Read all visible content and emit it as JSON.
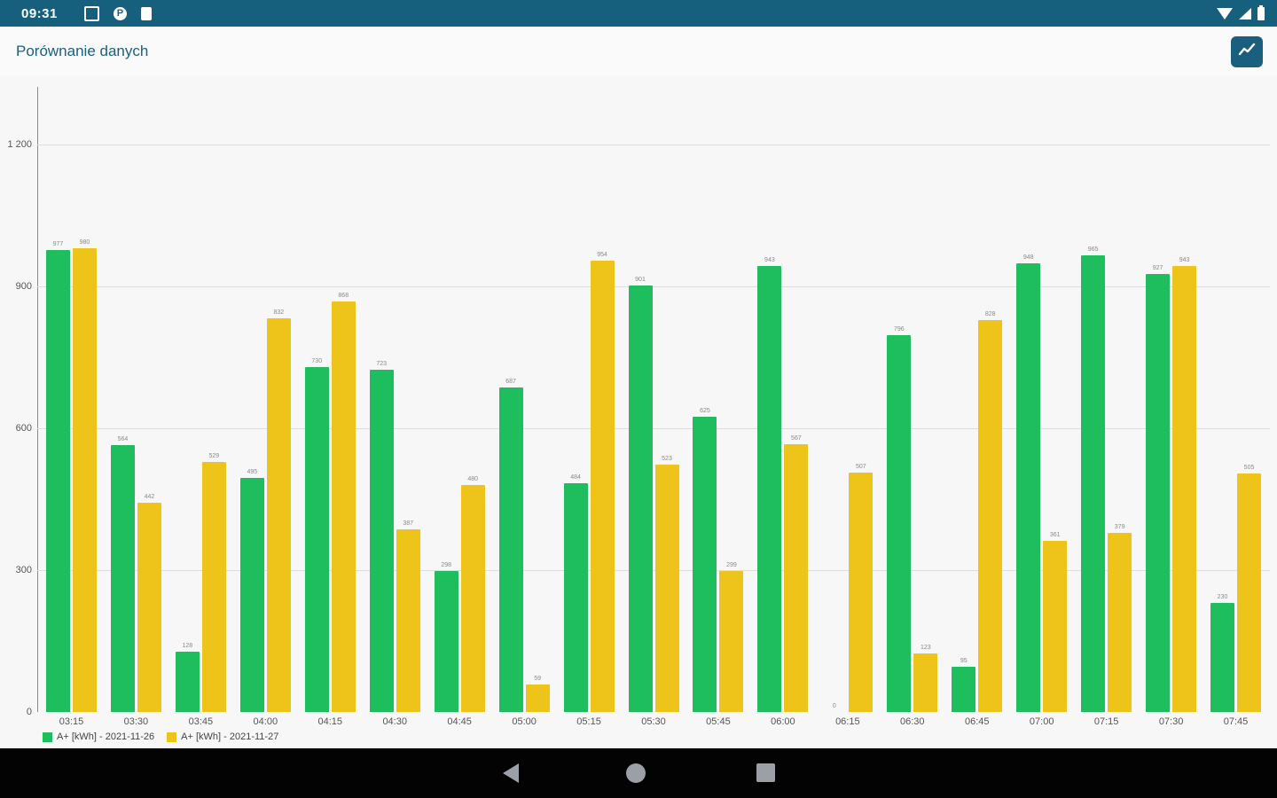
{
  "status_bar": {
    "time": "09:31",
    "notification_icon_label": "P",
    "icons": [
      "notification-square",
      "notification-circle-p",
      "notification-file",
      "wifi",
      "signal",
      "battery"
    ]
  },
  "title_bar": {
    "title": "Porównanie danych",
    "chart_button_icon": "trending-line"
  },
  "chart_data": {
    "type": "bar",
    "title": "",
    "xlabel": "",
    "ylabel": "",
    "ylim": [
      0,
      1200
    ],
    "grid": true,
    "legend_position": "bottom-left",
    "y_ticks": [
      {
        "value": 0,
        "label": "0"
      },
      {
        "value": 300,
        "label": "300"
      },
      {
        "value": 600,
        "label": "600"
      },
      {
        "value": 900,
        "label": "900"
      },
      {
        "value": 1200,
        "label": "1 200"
      }
    ],
    "categories": [
      "03:15",
      "03:30",
      "03:45",
      "04:00",
      "04:15",
      "04:30",
      "04:45",
      "05:00",
      "05:15",
      "05:30",
      "05:45",
      "06:00",
      "06:15",
      "06:30",
      "06:45",
      "07:00",
      "07:15",
      "07:30",
      "07:45"
    ],
    "series": [
      {
        "name": "A+ [kWh] - 2021-11-26",
        "color": "#1ebe5f",
        "values": [
          977,
          564,
          128,
          495,
          730,
          723,
          298,
          687,
          484,
          901,
          625,
          943,
          0,
          796,
          95,
          948,
          965,
          927,
          230
        ]
      },
      {
        "name": "A+ [kWh] - 2021-11-27",
        "color": "#eec31a",
        "values": [
          980,
          442,
          529,
          832,
          868,
          387,
          480,
          59,
          954,
          523,
          299,
          567,
          507,
          123,
          828,
          361,
          379,
          943,
          505
        ]
      }
    ]
  },
  "nav_bar": {
    "icons": [
      "back",
      "home",
      "recents"
    ]
  },
  "colors": {
    "status_bar_bg": "#17607d",
    "accent_blue": "#1a5f7d",
    "chart_bg": "#f7f7f7",
    "gridline": "#dddddd"
  }
}
